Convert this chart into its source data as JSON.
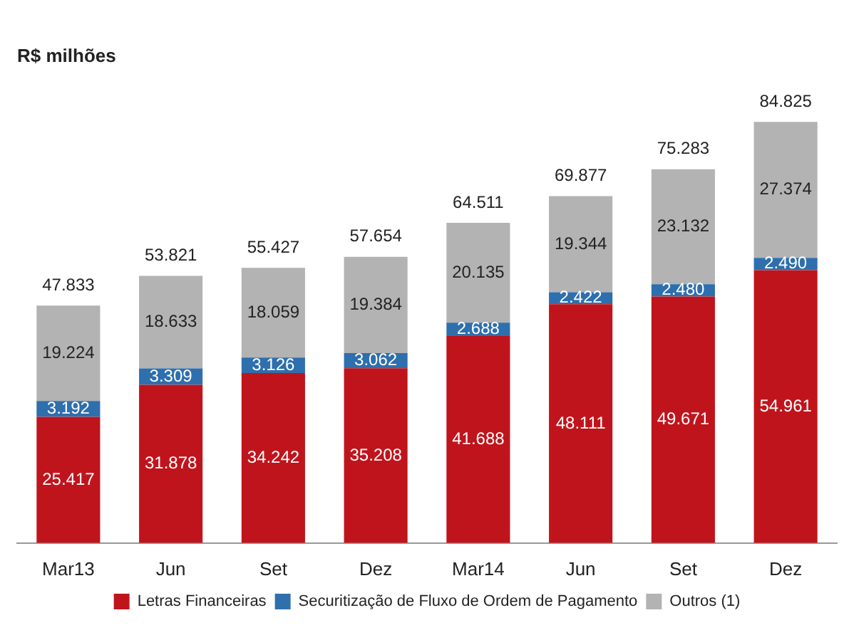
{
  "chart_data": {
    "type": "bar",
    "title": "R$ milhões",
    "stacked": true,
    "legend": "bottom",
    "categories": [
      "Mar13",
      "Jun",
      "Set",
      "Dez",
      "Mar14",
      "Jun",
      "Set",
      "Dez"
    ],
    "series": [
      {
        "name": "Letras Financeiras",
        "color": "#c0141c",
        "values": [
          25417,
          31878,
          34242,
          35208,
          41688,
          48111,
          49671,
          54961
        ],
        "value_labels": [
          "25.417",
          "31.878",
          "34.242",
          "35.208",
          "41.688",
          "48.111",
          "49.671",
          "54.961"
        ]
      },
      {
        "name": "Securitização de Fluxo de Ordem de Pagamento",
        "color": "#2e6fad",
        "values": [
          3192,
          3309,
          3126,
          3062,
          2688,
          2422,
          2480,
          2490
        ],
        "value_labels": [
          "3.192",
          "3.309",
          "3.126",
          "3.062",
          "2.688",
          "2.422",
          "2.480",
          "2.490"
        ]
      },
      {
        "name": "Outros (1)",
        "color": "#b3b3b3",
        "values": [
          19224,
          18633,
          18059,
          19384,
          20135,
          19344,
          23132,
          27374
        ],
        "value_labels": [
          "19.224",
          "18.633",
          "18.059",
          "19.384",
          "20.135",
          "19.344",
          "23.132",
          "27.374"
        ]
      }
    ],
    "totals": [
      "47.833",
      "53.821",
      "55.427",
      "57.654",
      "64.511",
      "69.877",
      "75.283",
      "84.825"
    ]
  }
}
